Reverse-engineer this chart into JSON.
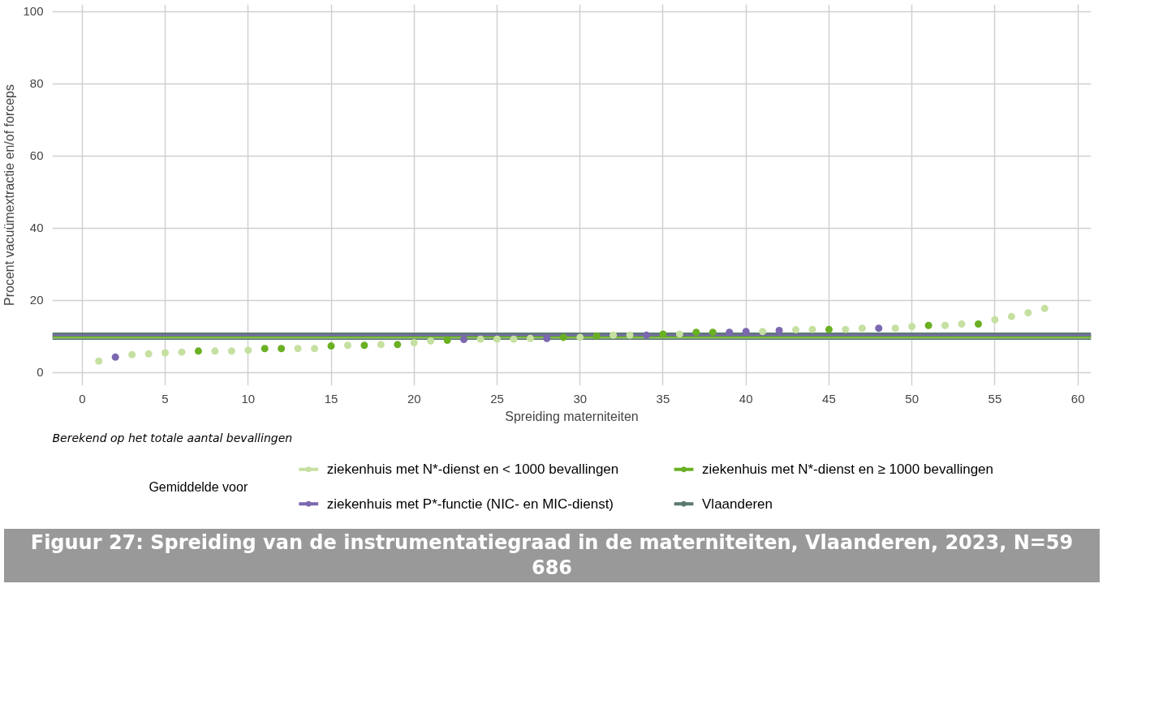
{
  "chart_data": {
    "type": "scatter",
    "title": "Figuur 27: Spreiding van de instrumentatiegraad in de materniteiten, Vlaanderen, 2023, N=59 686",
    "xlabel": "Spreiding materniteiten",
    "ylabel": "Procent vacuümextractie en/of forceps",
    "legend_title": "Gemiddelde voor",
    "annotations": [
      "Berekend op het totale aantal bevallingen"
    ],
    "xlim": [
      -1.8,
      60.8
    ],
    "ylim": [
      -3.7,
      102
    ],
    "xticks": [
      0,
      5,
      10,
      15,
      20,
      25,
      30,
      35,
      40,
      45,
      50,
      55,
      60
    ],
    "yticks": [
      0,
      20,
      40,
      60,
      80,
      100
    ],
    "grid": true,
    "legend": "bottom",
    "marker": "circle",
    "series": [
      {
        "color": "#c5e0a0",
        "x": [
          1,
          3,
          4,
          5,
          6,
          8,
          9,
          10,
          13,
          14,
          16,
          18,
          20,
          21,
          24,
          25,
          26,
          27,
          30,
          32,
          33,
          36,
          41,
          43,
          44,
          46,
          47,
          49,
          50,
          52,
          53,
          55,
          56,
          57,
          58
        ],
        "values": [
          3.1,
          4.9,
          5.1,
          5.4,
          5.6,
          5.9,
          5.9,
          6.1,
          6.6,
          6.6,
          7.5,
          7.7,
          8.2,
          8.7,
          9.2,
          9.2,
          9.2,
          9.4,
          9.7,
          10.3,
          10.3,
          10.6,
          11.3,
          11.8,
          11.9,
          11.9,
          12.2,
          12.2,
          12.7,
          13.0,
          13.4,
          14.6,
          15.5,
          16.5,
          17.7
        ]
      },
      {
        "color": "#6ab023",
        "x": [
          7,
          11,
          12,
          15,
          17,
          19,
          22,
          29,
          31,
          35,
          37,
          38,
          45,
          51,
          54
        ],
        "values": [
          5.9,
          6.6,
          6.6,
          7.3,
          7.5,
          7.7,
          8.9,
          9.7,
          10.1,
          10.6,
          11.1,
          11.1,
          11.9,
          13.0,
          13.4
        ]
      },
      {
        "color": "#7b68b0",
        "x": [
          2,
          23,
          28,
          34,
          39,
          40,
          42,
          48
        ],
        "values": [
          4.2,
          9.1,
          9.4,
          10.3,
          11.1,
          11.3,
          11.6,
          12.2
        ]
      }
    ],
    "ref_lines": [
      {
        "axis": "y",
        "value": 9.6,
        "label": "ziekenhuis met N*-dienst en < 1000 bevallingen",
        "color": "#c5e0a0"
      },
      {
        "axis": "y",
        "value": 9.8,
        "label": "ziekenhuis met N*-dienst en ≥ 1000 bevallingen",
        "color": "#6ab023"
      },
      {
        "axis": "y",
        "value": 10.3,
        "label": "ziekenhuis met P*-functie (NIC- en MIC-dienst)",
        "color": "#7b68b0"
      },
      {
        "axis": "y",
        "value": 10.0,
        "label": "Vlaanderen",
        "color": "#5a7a70"
      }
    ]
  }
}
